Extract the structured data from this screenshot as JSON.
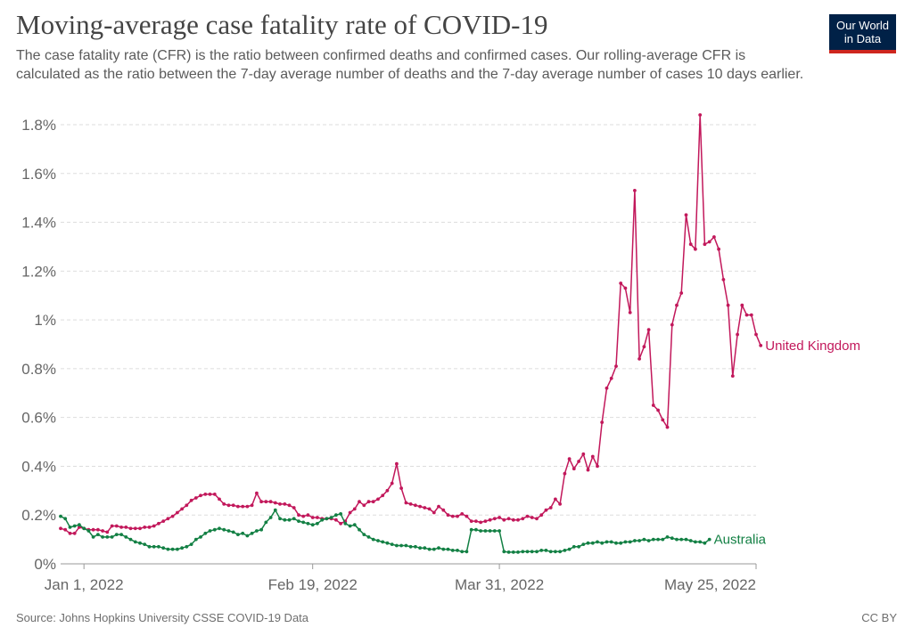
{
  "header": {
    "title": "Moving-average case fatality rate of COVID-19",
    "subtitle": "The case fatality rate (CFR) is the ratio between confirmed deaths and confirmed cases. Our rolling-average CFR is calculated as the ratio between the 7-day average number of deaths and the 7-day average number of cases 10 days earlier."
  },
  "logo": {
    "line1": "Our World",
    "line2": "in Data"
  },
  "footer": {
    "source": "Source: Johns Hopkins University CSSE COVID-19 Data",
    "license": "CC BY"
  },
  "chart_data": {
    "type": "line",
    "title": "Moving-average case fatality rate of COVID-19",
    "xlabel": "",
    "ylabel": "",
    "x_start": "2021-12-27",
    "x_ticks": [
      {
        "label": "Jan 1, 2022",
        "date": "2022-01-01"
      },
      {
        "label": "Feb 19, 2022",
        "date": "2022-02-19"
      },
      {
        "label": "Mar 31, 2022",
        "date": "2022-03-31"
      },
      {
        "label": "May 25, 2022",
        "date": "2022-05-25"
      }
    ],
    "x_range": [
      "2021-12-27",
      "2022-05-25"
    ],
    "ylim": [
      0,
      1.8
    ],
    "y_ticks": [
      0,
      0.2,
      0.4,
      0.6,
      0.8,
      1,
      1.2,
      1.4,
      1.6,
      1.8
    ],
    "y_tick_labels": [
      "0%",
      "0.2%",
      "0.4%",
      "0.6%",
      "0.8%",
      "1%",
      "1.2%",
      "1.4%",
      "1.6%",
      "1.8%"
    ],
    "grid": "horizontal dashed",
    "legend": "inline labels at line ends",
    "series": [
      {
        "name": "United Kingdom",
        "color": "#c2185b",
        "values": [
          0.145,
          0.14,
          0.125,
          0.125,
          0.15,
          0.145,
          0.14,
          0.14,
          0.14,
          0.135,
          0.13,
          0.155,
          0.155,
          0.15,
          0.15,
          0.145,
          0.145,
          0.145,
          0.15,
          0.15,
          0.155,
          0.165,
          0.175,
          0.185,
          0.195,
          0.21,
          0.225,
          0.24,
          0.26,
          0.27,
          0.28,
          0.285,
          0.285,
          0.285,
          0.265,
          0.245,
          0.24,
          0.24,
          0.235,
          0.235,
          0.235,
          0.24,
          0.29,
          0.255,
          0.255,
          0.255,
          0.25,
          0.245,
          0.245,
          0.24,
          0.23,
          0.2,
          0.195,
          0.2,
          0.19,
          0.19,
          0.185,
          0.185,
          0.185,
          0.18,
          0.165,
          0.175,
          0.21,
          0.225,
          0.255,
          0.24,
          0.255,
          0.255,
          0.265,
          0.28,
          0.3,
          0.33,
          0.41,
          0.31,
          0.25,
          0.245,
          0.24,
          0.235,
          0.23,
          0.225,
          0.21,
          0.235,
          0.22,
          0.2,
          0.195,
          0.195,
          0.205,
          0.195,
          0.175,
          0.175,
          0.17,
          0.175,
          0.18,
          0.185,
          0.19,
          0.18,
          0.185,
          0.18,
          0.18,
          0.185,
          0.195,
          0.19,
          0.185,
          0.2,
          0.22,
          0.23,
          0.265,
          0.245,
          0.37,
          0.43,
          0.39,
          0.42,
          0.45,
          0.385,
          0.44,
          0.4,
          0.58,
          0.72,
          0.76,
          0.81,
          1.15,
          1.13,
          1.03,
          1.53,
          0.84,
          0.89,
          0.96,
          0.65,
          0.63,
          0.59,
          0.56,
          0.98,
          1.06,
          1.11,
          1.43,
          1.31,
          1.29,
          1.84,
          1.31,
          1.32,
          1.34,
          1.29,
          1.165,
          1.06,
          0.77,
          0.94,
          1.06,
          1.02,
          1.02,
          0.94,
          0.895
        ]
      },
      {
        "name": "Australia",
        "color": "#138044",
        "values": [
          0.195,
          0.185,
          0.15,
          0.155,
          0.16,
          0.145,
          0.135,
          0.11,
          0.12,
          0.11,
          0.11,
          0.11,
          0.12,
          0.12,
          0.11,
          0.1,
          0.09,
          0.085,
          0.08,
          0.07,
          0.07,
          0.07,
          0.065,
          0.06,
          0.06,
          0.06,
          0.065,
          0.07,
          0.08,
          0.1,
          0.11,
          0.125,
          0.135,
          0.14,
          0.145,
          0.14,
          0.135,
          0.13,
          0.12,
          0.125,
          0.115,
          0.125,
          0.135,
          0.14,
          0.17,
          0.19,
          0.22,
          0.185,
          0.18,
          0.18,
          0.185,
          0.175,
          0.17,
          0.165,
          0.16,
          0.165,
          0.18,
          0.185,
          0.19,
          0.2,
          0.205,
          0.165,
          0.155,
          0.16,
          0.14,
          0.12,
          0.11,
          0.1,
          0.095,
          0.09,
          0.085,
          0.08,
          0.075,
          0.075,
          0.075,
          0.07,
          0.07,
          0.065,
          0.065,
          0.06,
          0.06,
          0.065,
          0.06,
          0.06,
          0.055,
          0.055,
          0.05,
          0.05,
          0.14,
          0.14,
          0.135,
          0.135,
          0.135,
          0.135,
          0.135,
          0.05,
          0.048,
          0.048,
          0.048,
          0.05,
          0.05,
          0.05,
          0.05,
          0.055,
          0.055,
          0.05,
          0.05,
          0.05,
          0.055,
          0.06,
          0.07,
          0.07,
          0.08,
          0.085,
          0.085,
          0.09,
          0.085,
          0.09,
          0.09,
          0.085,
          0.085,
          0.09,
          0.09,
          0.095,
          0.095,
          0.1,
          0.095,
          0.1,
          0.1,
          0.1,
          0.11,
          0.105,
          0.1,
          0.1,
          0.1,
          0.095,
          0.09,
          0.09,
          0.085,
          0.1
        ]
      }
    ]
  }
}
